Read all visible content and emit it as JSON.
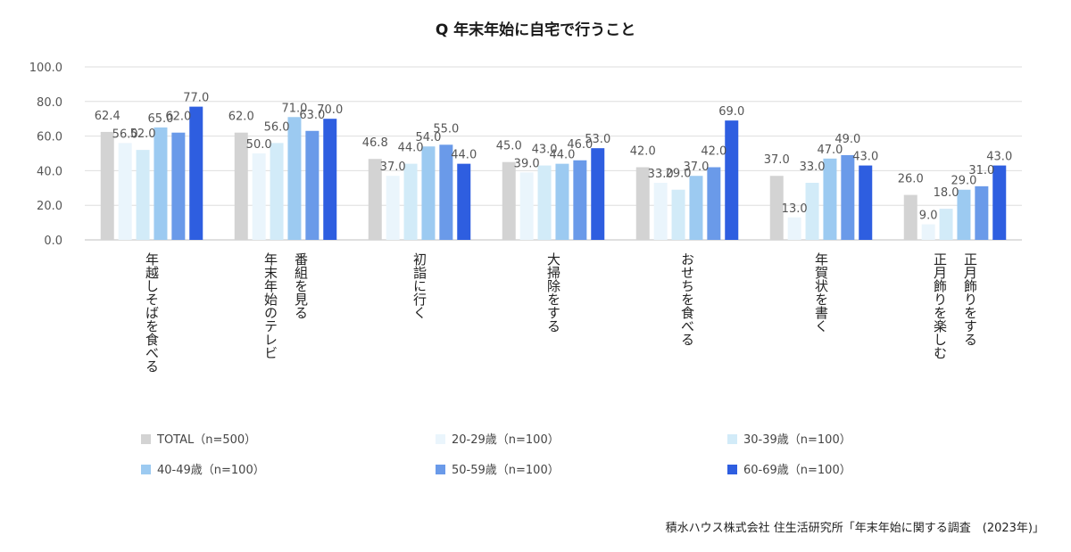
{
  "chart_data": {
    "type": "bar",
    "title": "Q 年末年始に自宅で行うこと",
    "ylim": [
      0,
      100
    ],
    "yticks": [
      "0.0",
      "20.0",
      "40.0",
      "60.0",
      "80.0",
      "100.0"
    ],
    "grid": true,
    "legend_position": "bottom",
    "categories": [
      [
        "年越しそばを食べる"
      ],
      [
        "年末年始のテレビ",
        "番組を見る"
      ],
      [
        "初詣に行く"
      ],
      [
        "大掃除をする"
      ],
      [
        "おせちを食べる"
      ],
      [
        "年賀状を書く"
      ],
      [
        "正月飾りを楽しむ",
        "正月飾りをする"
      ]
    ],
    "series": [
      {
        "name": "TOTAL（n=500）",
        "color": "#d3d3d3",
        "values": [
          62.4,
          62.0,
          46.8,
          45.0,
          42.0,
          37.0,
          26.0
        ]
      },
      {
        "name": "20-29歳（n=100）",
        "color": "#eaf5fc",
        "values": [
          56.0,
          50.0,
          37.0,
          39.0,
          33.0,
          13.0,
          9.0
        ]
      },
      {
        "name": "30-39歳（n=100）",
        "color": "#d2ebf8",
        "values": [
          52.0,
          56.0,
          44.0,
          43.0,
          29.0,
          33.0,
          18.0
        ]
      },
      {
        "name": "40-49歳（n=100）",
        "color": "#9ccaf1",
        "values": [
          65.0,
          71.0,
          54.0,
          44.0,
          37.0,
          47.0,
          29.0
        ]
      },
      {
        "name": "50-59歳（n=100）",
        "color": "#6a9ae9",
        "values": [
          62.0,
          63.0,
          55.0,
          46.0,
          42.0,
          49.0,
          31.0
        ]
      },
      {
        "name": "60-69歳（n=100）",
        "color": "#2e5ee0",
        "values": [
          77.0,
          70.0,
          44.0,
          53.0,
          69.0,
          43.0,
          43.0
        ]
      }
    ],
    "source": "積水ハウス株式会社 住生活研究所「年末年始に関する調査　(2023年)」"
  }
}
